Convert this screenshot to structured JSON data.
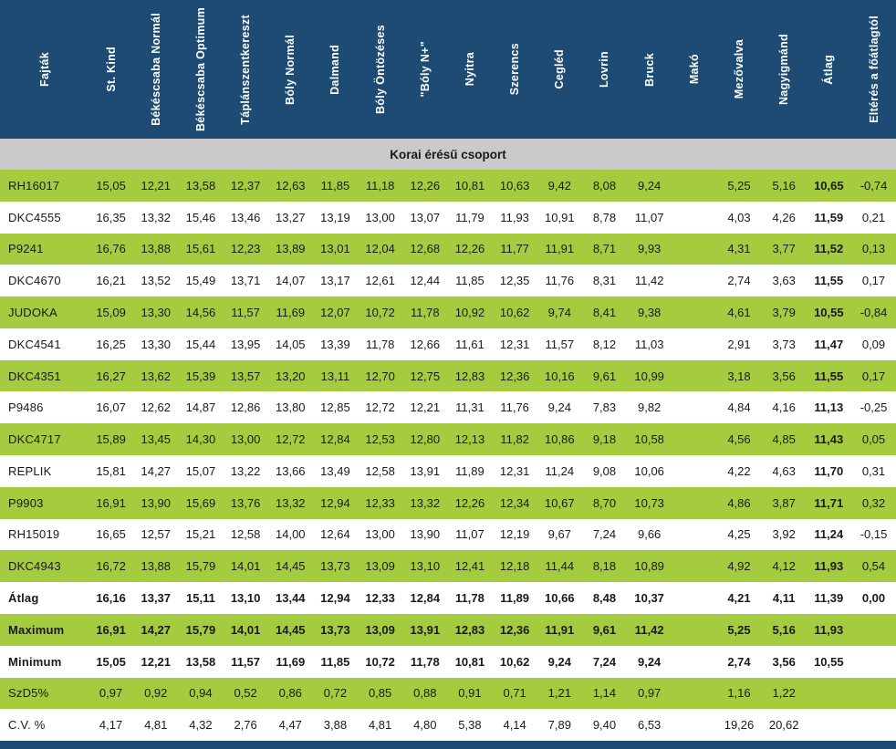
{
  "chart_data": {
    "type": "table",
    "section_header": "Korai érésű csoport",
    "columns": [
      "Fajták",
      "St. Kind",
      "Békéscsaba Normál",
      "Békéscsaba Optimum",
      "Táplánszentkereszt",
      "Bóly Normál",
      "Dalmand",
      "Bóly Öntözéses",
      "\"Bóly N+\"",
      "Nyitra",
      "Szerencs",
      "Cegléd",
      "Lovrin",
      "Bruck",
      "Makó",
      "Mezővalva",
      "Nagyigmánd",
      "Átlag",
      "Eltérés a főátlagtól"
    ],
    "bold_value_index": 16,
    "rows": [
      {
        "label": "RH16017",
        "bold": false,
        "values": [
          "15,05",
          "12,21",
          "13,58",
          "12,37",
          "12,63",
          "11,85",
          "11,18",
          "12,26",
          "10,81",
          "10,63",
          "9,42",
          "8,08",
          "9,24",
          "",
          "5,25",
          "5,16",
          "10,65",
          "-0,74"
        ]
      },
      {
        "label": "DKC4555",
        "bold": false,
        "values": [
          "16,35",
          "13,32",
          "15,46",
          "13,46",
          "13,27",
          "13,19",
          "13,00",
          "13,07",
          "11,79",
          "11,93",
          "10,91",
          "8,78",
          "11,07",
          "",
          "4,03",
          "4,26",
          "11,59",
          "0,21"
        ]
      },
      {
        "label": "P9241",
        "bold": false,
        "values": [
          "16,76",
          "13,88",
          "15,61",
          "12,23",
          "13,89",
          "13,01",
          "12,04",
          "12,68",
          "12,26",
          "11,77",
          "11,91",
          "8,71",
          "9,93",
          "",
          "4,31",
          "3,77",
          "11,52",
          "0,13"
        ]
      },
      {
        "label": "DKC4670",
        "bold": false,
        "values": [
          "16,21",
          "13,52",
          "15,49",
          "13,71",
          "14,07",
          "13,17",
          "12,61",
          "12,44",
          "11,85",
          "12,35",
          "11,76",
          "8,31",
          "11,42",
          "",
          "2,74",
          "3,63",
          "11,55",
          "0,17"
        ]
      },
      {
        "label": "JUDOKA",
        "bold": false,
        "values": [
          "15,09",
          "13,30",
          "14,56",
          "11,57",
          "11,69",
          "12,07",
          "10,72",
          "11,78",
          "10,92",
          "10,62",
          "9,74",
          "8,41",
          "9,38",
          "",
          "4,61",
          "3,79",
          "10,55",
          "-0,84"
        ]
      },
      {
        "label": "DKC4541",
        "bold": false,
        "values": [
          "16,25",
          "13,30",
          "15,44",
          "13,95",
          "14,05",
          "13,39",
          "11,78",
          "12,66",
          "11,61",
          "12,31",
          "11,57",
          "8,12",
          "11,03",
          "",
          "2,91",
          "3,73",
          "11,47",
          "0,09"
        ]
      },
      {
        "label": "DKC4351",
        "bold": false,
        "values": [
          "16,27",
          "13,62",
          "15,39",
          "13,57",
          "13,20",
          "13,11",
          "12,70",
          "12,75",
          "12,83",
          "12,36",
          "10,16",
          "9,61",
          "10,99",
          "",
          "3,18",
          "3,56",
          "11,55",
          "0,17"
        ]
      },
      {
        "label": "P9486",
        "bold": false,
        "values": [
          "16,07",
          "12,62",
          "14,87",
          "12,86",
          "13,80",
          "12,85",
          "12,72",
          "12,21",
          "11,31",
          "11,76",
          "9,24",
          "7,83",
          "9,82",
          "",
          "4,84",
          "4,16",
          "11,13",
          "-0,25"
        ]
      },
      {
        "label": "DKC4717",
        "bold": false,
        "values": [
          "15,89",
          "13,45",
          "14,30",
          "13,00",
          "12,72",
          "12,84",
          "12,53",
          "12,80",
          "12,13",
          "11,82",
          "10,86",
          "9,18",
          "10,58",
          "",
          "4,56",
          "4,85",
          "11,43",
          "0,05"
        ]
      },
      {
        "label": "REPLIK",
        "bold": false,
        "values": [
          "15,81",
          "14,27",
          "15,07",
          "13,22",
          "13,66",
          "13,49",
          "12,58",
          "13,91",
          "11,89",
          "12,31",
          "11,24",
          "9,08",
          "10,06",
          "",
          "4,22",
          "4,63",
          "11,70",
          "0,31"
        ]
      },
      {
        "label": "P9903",
        "bold": false,
        "values": [
          "16,91",
          "13,90",
          "15,69",
          "13,76",
          "13,32",
          "12,94",
          "12,33",
          "13,32",
          "12,26",
          "12,34",
          "10,67",
          "8,70",
          "10,73",
          "",
          "4,86",
          "3,87",
          "11,71",
          "0,32"
        ]
      },
      {
        "label": "RH15019",
        "bold": false,
        "values": [
          "16,65",
          "12,57",
          "15,21",
          "12,58",
          "14,00",
          "12,64",
          "13,00",
          "13,90",
          "11,07",
          "12,19",
          "9,67",
          "7,24",
          "9,66",
          "",
          "4,25",
          "3,92",
          "11,24",
          "-0,15"
        ]
      },
      {
        "label": "DKC4943",
        "bold": false,
        "values": [
          "16,72",
          "13,88",
          "15,79",
          "14,01",
          "14,45",
          "13,73",
          "13,09",
          "13,10",
          "12,41",
          "12,18",
          "11,44",
          "8,18",
          "10,89",
          "",
          "4,92",
          "4,12",
          "11,93",
          "0,54"
        ]
      },
      {
        "label": "Átlag",
        "bold": true,
        "values": [
          "16,16",
          "13,37",
          "15,11",
          "13,10",
          "13,44",
          "12,94",
          "12,33",
          "12,84",
          "11,78",
          "11,89",
          "10,66",
          "8,48",
          "10,37",
          "",
          "4,21",
          "4,11",
          "11,39",
          "0,00"
        ]
      },
      {
        "label": "Maximum",
        "bold": true,
        "values": [
          "16,91",
          "14,27",
          "15,79",
          "14,01",
          "14,45",
          "13,73",
          "13,09",
          "13,91",
          "12,83",
          "12,36",
          "11,91",
          "9,61",
          "11,42",
          "",
          "5,25",
          "5,16",
          "11,93",
          ""
        ]
      },
      {
        "label": "Minimum",
        "bold": true,
        "values": [
          "15,05",
          "12,21",
          "13,58",
          "11,57",
          "11,69",
          "11,85",
          "10,72",
          "11,78",
          "10,81",
          "10,62",
          "9,24",
          "7,24",
          "9,24",
          "",
          "2,74",
          "3,56",
          "10,55",
          ""
        ]
      },
      {
        "label": "SzD5%",
        "bold": false,
        "values": [
          "0,97",
          "0,92",
          "0,94",
          "0,52",
          "0,86",
          "0,72",
          "0,85",
          "0,88",
          "0,91",
          "0,71",
          "1,21",
          "1,14",
          "0,97",
          "",
          "1,16",
          "1,22",
          "",
          ""
        ]
      },
      {
        "label": "C.V. %",
        "bold": false,
        "values": [
          "4,17",
          "4,81",
          "4,32",
          "2,76",
          "4,47",
          "3,88",
          "4,81",
          "4,80",
          "5,38",
          "4,14",
          "7,89",
          "9,40",
          "6,53",
          "",
          "19,26",
          "20,62",
          "",
          ""
        ]
      }
    ],
    "colors": {
      "header_bg": "#1E4B73",
      "green_row": "#A5CB3F",
      "section_band": "#CACACC",
      "text": "#1A1A1A",
      "header_text": "#FFFFFF"
    },
    "layout": {
      "first_row_stripe": "green",
      "header_labels_rotated": true
    }
  }
}
